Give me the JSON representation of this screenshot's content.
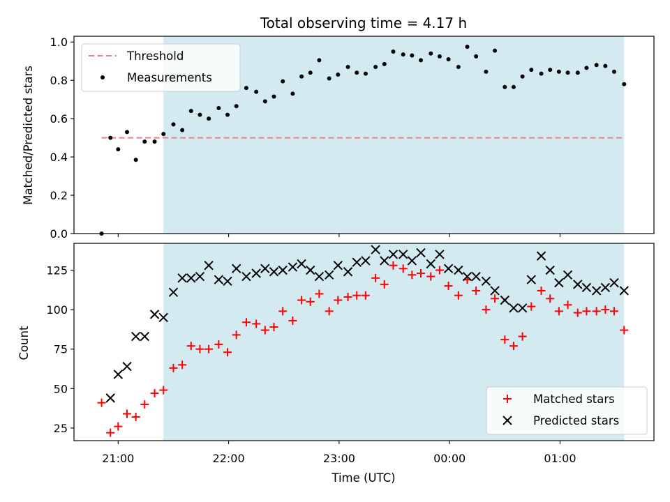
{
  "chart_data": {
    "title": "Total observing time = 4.17 h",
    "type": "scatter",
    "xlabel": "Time (UTC)",
    "x_unit": "decimal hours UTC (values past 24 are after midnight)",
    "xlim": [
      20.6,
      25.85
    ],
    "x_tick_values": [
      21,
      22,
      23,
      24,
      25
    ],
    "x_tick_labels": [
      "21:00",
      "22:00",
      "23:00",
      "00:00",
      "01:00"
    ],
    "observing_window": {
      "start": 21.41,
      "end": 25.58,
      "color": "#d3eaf1"
    },
    "panels": [
      {
        "ylabel": "Matched/Predicted stars",
        "ylim": [
          0,
          1.03
        ],
        "y_ticks": [
          "0.0",
          "0.2",
          "0.4",
          "0.6",
          "0.8",
          "1.0"
        ],
        "threshold": {
          "name": "Threshold",
          "value": 0.5,
          "x_start": 20.85,
          "x_end": 25.58,
          "color": "#f08080"
        },
        "legend": {
          "position": "upper left",
          "entries": [
            "Threshold",
            "Measurements"
          ]
        },
        "series": [
          {
            "name": "Measurements",
            "marker": "dot",
            "color": "#000000",
            "points": [
              [
                20.85,
                0.0
              ],
              [
                20.93,
                0.5
              ],
              [
                21.0,
                0.44
              ],
              [
                21.08,
                0.53
              ],
              [
                21.16,
                0.385
              ],
              [
                21.24,
                0.48
              ],
              [
                21.33,
                0.48
              ],
              [
                21.41,
                0.52
              ],
              [
                21.5,
                0.57
              ],
              [
                21.58,
                0.54
              ],
              [
                21.66,
                0.64
              ],
              [
                21.74,
                0.62
              ],
              [
                21.82,
                0.6
              ],
              [
                21.91,
                0.655
              ],
              [
                21.99,
                0.62
              ],
              [
                22.07,
                0.665
              ],
              [
                22.16,
                0.76
              ],
              [
                22.25,
                0.74
              ],
              [
                22.33,
                0.69
              ],
              [
                22.41,
                0.715
              ],
              [
                22.49,
                0.795
              ],
              [
                22.58,
                0.73
              ],
              [
                22.66,
                0.82
              ],
              [
                22.74,
                0.84
              ],
              [
                22.82,
                0.905
              ],
              [
                22.91,
                0.81
              ],
              [
                22.99,
                0.83
              ],
              [
                23.08,
                0.87
              ],
              [
                23.16,
                0.84
              ],
              [
                23.24,
                0.835
              ],
              [
                23.33,
                0.87
              ],
              [
                23.41,
                0.885
              ],
              [
                23.49,
                0.95
              ],
              [
                23.58,
                0.935
              ],
              [
                23.66,
                0.93
              ],
              [
                23.74,
                0.905
              ],
              [
                23.83,
                0.94
              ],
              [
                23.91,
                0.925
              ],
              [
                23.99,
                0.91
              ],
              [
                24.08,
                0.87
              ],
              [
                24.16,
                0.975
              ],
              [
                24.24,
                0.925
              ],
              [
                24.33,
                0.845
              ],
              [
                24.41,
                0.955
              ],
              [
                24.5,
                0.765
              ],
              [
                24.58,
                0.765
              ],
              [
                24.66,
                0.82
              ],
              [
                24.74,
                0.855
              ],
              [
                24.83,
                0.835
              ],
              [
                24.91,
                0.855
              ],
              [
                24.99,
                0.845
              ],
              [
                25.07,
                0.84
              ],
              [
                25.16,
                0.84
              ],
              [
                25.24,
                0.865
              ],
              [
                25.33,
                0.88
              ],
              [
                25.41,
                0.875
              ],
              [
                25.49,
                0.845
              ],
              [
                25.58,
                0.78
              ]
            ]
          }
        ]
      },
      {
        "ylabel": "Count",
        "ylim": [
          17,
          142
        ],
        "y_ticks": [
          "25",
          "50",
          "75",
          "100",
          "125"
        ],
        "legend": {
          "position": "lower right",
          "entries": [
            "Matched stars",
            "Predicted stars"
          ]
        },
        "series": [
          {
            "name": "Matched stars",
            "marker": "plus",
            "color": "#ff0000",
            "points": [
              [
                20.85,
                41
              ],
              [
                20.93,
                22
              ],
              [
                21.0,
                26
              ],
              [
                21.08,
                34
              ],
              [
                21.16,
                32
              ],
              [
                21.24,
                40
              ],
              [
                21.33,
                47
              ],
              [
                21.41,
                49
              ],
              [
                21.5,
                63
              ],
              [
                21.58,
                65
              ],
              [
                21.66,
                77
              ],
              [
                21.74,
                75
              ],
              [
                21.82,
                75
              ],
              [
                21.91,
                78
              ],
              [
                21.99,
                73
              ],
              [
                22.07,
                84
              ],
              [
                22.16,
                92
              ],
              [
                22.25,
                91
              ],
              [
                22.33,
                87
              ],
              [
                22.41,
                89
              ],
              [
                22.49,
                99
              ],
              [
                22.58,
                93
              ],
              [
                22.66,
                106
              ],
              [
                22.74,
                105
              ],
              [
                22.82,
                110
              ],
              [
                22.91,
                99
              ],
              [
                22.99,
                106
              ],
              [
                23.08,
                108
              ],
              [
                23.16,
                109
              ],
              [
                23.24,
                109
              ],
              [
                23.33,
                120
              ],
              [
                23.41,
                116
              ],
              [
                23.49,
                128
              ],
              [
                23.58,
                126
              ],
              [
                23.66,
                122
              ],
              [
                23.74,
                123
              ],
              [
                23.83,
                121
              ],
              [
                23.91,
                125
              ],
              [
                23.99,
                115
              ],
              [
                24.08,
                109
              ],
              [
                24.16,
                119
              ],
              [
                24.24,
                112
              ],
              [
                24.33,
                100
              ],
              [
                24.41,
                107
              ],
              [
                24.5,
                81
              ],
              [
                24.58,
                77
              ],
              [
                24.66,
                83
              ],
              [
                24.74,
                102
              ],
              [
                24.83,
                112
              ],
              [
                24.91,
                107
              ],
              [
                24.99,
                99
              ],
              [
                25.07,
                103
              ],
              [
                25.16,
                98
              ],
              [
                25.24,
                99
              ],
              [
                25.33,
                99
              ],
              [
                25.41,
                100
              ],
              [
                25.49,
                99
              ],
              [
                25.58,
                87
              ]
            ]
          },
          {
            "name": "Predicted stars",
            "marker": "cross",
            "color": "#000000",
            "points": [
              [
                20.93,
                44
              ],
              [
                21.0,
                59
              ],
              [
                21.08,
                64
              ],
              [
                21.16,
                83
              ],
              [
                21.24,
                83
              ],
              [
                21.33,
                97
              ],
              [
                21.41,
                95
              ],
              [
                21.5,
                111
              ],
              [
                21.58,
                120
              ],
              [
                21.66,
                120
              ],
              [
                21.74,
                121
              ],
              [
                21.82,
                128
              ],
              [
                21.91,
                119
              ],
              [
                21.99,
                118
              ],
              [
                22.07,
                126
              ],
              [
                22.16,
                121
              ],
              [
                22.25,
                123
              ],
              [
                22.33,
                126
              ],
              [
                22.41,
                124
              ],
              [
                22.49,
                125
              ],
              [
                22.58,
                127
              ],
              [
                22.66,
                129
              ],
              [
                22.74,
                125
              ],
              [
                22.82,
                121
              ],
              [
                22.91,
                122
              ],
              [
                22.99,
                128
              ],
              [
                23.08,
                124
              ],
              [
                23.16,
                130
              ],
              [
                23.24,
                131
              ],
              [
                23.33,
                138
              ],
              [
                23.41,
                131
              ],
              [
                23.49,
                135
              ],
              [
                23.58,
                135
              ],
              [
                23.66,
                131
              ],
              [
                23.74,
                136
              ],
              [
                23.83,
                129
              ],
              [
                23.91,
                135
              ],
              [
                23.99,
                126
              ],
              [
                24.08,
                125
              ],
              [
                24.16,
                121
              ],
              [
                24.24,
                121
              ],
              [
                24.33,
                118
              ],
              [
                24.41,
                112
              ],
              [
                24.5,
                106
              ],
              [
                24.58,
                101
              ],
              [
                24.66,
                101
              ],
              [
                24.74,
                119
              ],
              [
                24.83,
                134
              ],
              [
                24.91,
                125
              ],
              [
                24.99,
                117
              ],
              [
                25.07,
                122
              ],
              [
                25.16,
                116
              ],
              [
                25.24,
                114
              ],
              [
                25.33,
                112
              ],
              [
                25.41,
                114
              ],
              [
                25.49,
                117
              ],
              [
                25.58,
                112
              ]
            ]
          }
        ]
      }
    ]
  }
}
